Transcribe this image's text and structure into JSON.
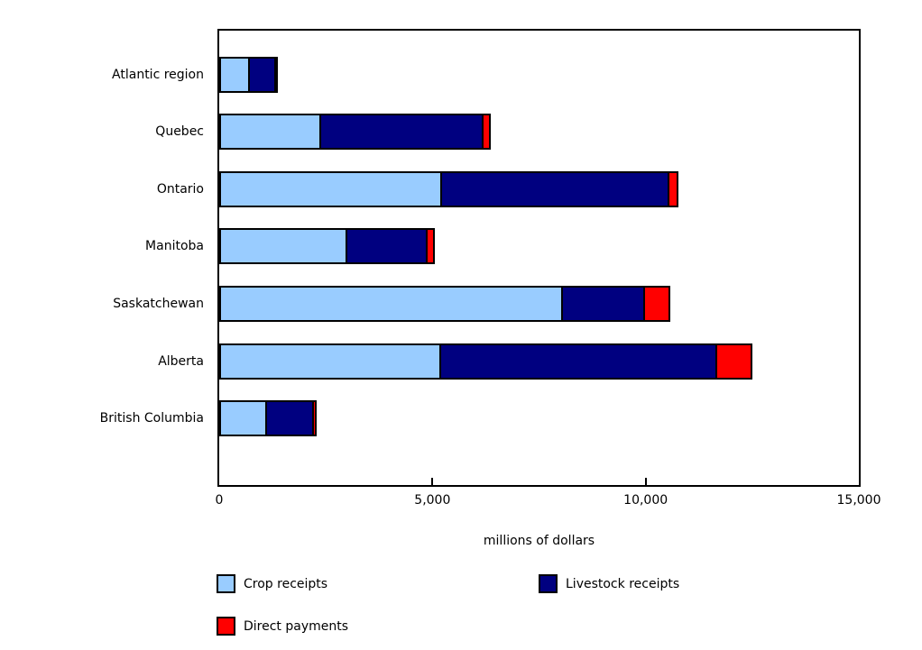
{
  "chart_data": {
    "type": "bar",
    "orientation": "horizontal",
    "stacked": true,
    "title": "",
    "xlabel": "millions of dollars",
    "ylabel": "",
    "xlim": [
      0,
      15000
    ],
    "grid": false,
    "legend_position": "bottom",
    "categories": [
      "Atlantic region",
      "Quebec",
      "Ontario",
      "Manitoba",
      "Saskatchewan",
      "Alberta",
      "British Columbia"
    ],
    "series": [
      {
        "name": "Crop receipts",
        "color": "#99CCFF",
        "values": [
          715,
          2390,
          5230,
          3000,
          8070,
          5210,
          1120
        ]
      },
      {
        "name": "Livestock receipts",
        "color": "#000080",
        "values": [
          650,
          3860,
          5370,
          1930,
          1960,
          6520,
          1140
        ]
      },
      {
        "name": "Direct payments",
        "color": "#FF0000",
        "values": [
          60,
          210,
          250,
          220,
          630,
          860,
          110
        ]
      }
    ],
    "xticks": [
      {
        "value": 0,
        "label": "0"
      },
      {
        "value": 5000,
        "label": "5,000"
      },
      {
        "value": 10000,
        "label": "10,000"
      },
      {
        "value": 15000,
        "label": "15,000"
      }
    ],
    "bar_border_color": "#000000",
    "background_color": "#FFFFFF"
  },
  "legend": {
    "items": [
      {
        "label": "Crop receipts",
        "color": "#99CCFF"
      },
      {
        "label": "Livestock receipts",
        "color": "#000080"
      },
      {
        "label": "Direct payments",
        "color": "#FF0000"
      }
    ]
  }
}
